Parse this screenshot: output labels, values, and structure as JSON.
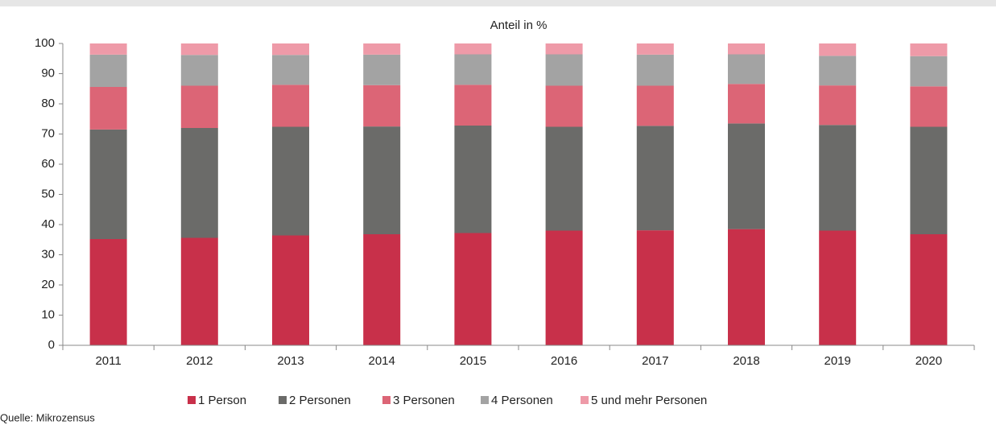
{
  "chart_data": {
    "type": "stacked_bar",
    "title": "Anteil in %",
    "source": "Quelle: Mikrozensus",
    "categories": [
      "2011",
      "2012",
      "2013",
      "2014",
      "2015",
      "2016",
      "2017",
      "2018",
      "2019",
      "2020"
    ],
    "series": [
      {
        "name": "1 Person",
        "color": "#c8304a",
        "values": [
          35.2,
          35.6,
          36.4,
          36.8,
          37.2,
          38.0,
          38.1,
          38.5,
          38.0,
          36.8
        ]
      },
      {
        "name": "2 Personen",
        "color": "#6b6b69",
        "values": [
          36.3,
          36.4,
          36.0,
          35.7,
          35.6,
          34.4,
          34.6,
          35.0,
          35.0,
          35.6
        ]
      },
      {
        "name": "3 Personen",
        "color": "#dc6576",
        "values": [
          14.1,
          14.0,
          13.9,
          13.7,
          13.5,
          13.6,
          13.3,
          13.1,
          13.1,
          13.4
        ]
      },
      {
        "name": "4 Personen",
        "color": "#a3a3a3",
        "values": [
          10.7,
          10.2,
          9.9,
          10.1,
          10.1,
          10.4,
          10.3,
          9.8,
          9.8,
          10.0
        ]
      },
      {
        "name": "5 und mehr Personen",
        "color": "#ee9aa8",
        "values": [
          3.7,
          3.8,
          3.8,
          3.7,
          3.6,
          3.6,
          3.7,
          3.6,
          4.1,
          4.2
        ]
      }
    ],
    "ylim": [
      0,
      100
    ],
    "yticks": [
      0,
      10,
      20,
      30,
      40,
      50,
      60,
      70,
      80,
      90,
      100
    ],
    "legend": "bottom"
  }
}
